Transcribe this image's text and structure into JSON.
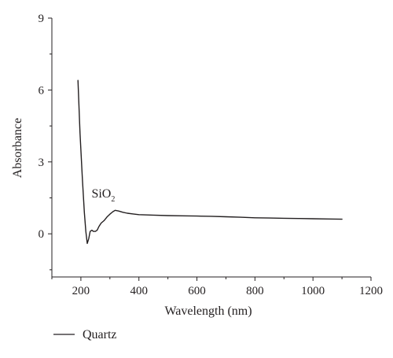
{
  "chart_data": {
    "type": "line",
    "xlabel": "Wavelength (nm)",
    "ylabel": "Absorbance",
    "xlim": [
      100,
      1200
    ],
    "ylim": [
      -1.8,
      9
    ],
    "x_ticks": [
      200,
      400,
      600,
      800,
      1000,
      1200
    ],
    "x_tick_labels": [
      "200",
      "400",
      "600",
      "800",
      "1000",
      "1200"
    ],
    "y_ticks": [
      0,
      3,
      6,
      9
    ],
    "y_tick_labels": [
      "0",
      "3",
      "6",
      "9"
    ],
    "grid": false,
    "legend_position": "bottom-left",
    "annotation": {
      "text": "SiO",
      "subscript": "2",
      "x": 318,
      "y": 1.25
    },
    "series": [
      {
        "name": "Quartz",
        "color": "#231f20",
        "x": [
          190,
          197,
          205,
          212,
          217,
          222,
          227,
          232,
          238,
          243,
          250,
          256,
          262,
          270,
          280,
          290,
          300,
          310,
          318,
          330,
          345,
          360,
          380,
          400,
          450,
          500,
          550,
          600,
          650,
          700,
          750,
          800,
          850,
          900,
          950,
          1000,
          1050,
          1100
        ],
        "y": [
          6.4,
          4.2,
          2.3,
          0.9,
          0.1,
          -0.4,
          -0.2,
          0.1,
          0.15,
          0.1,
          0.1,
          0.15,
          0.3,
          0.45,
          0.55,
          0.7,
          0.82,
          0.92,
          0.98,
          0.95,
          0.9,
          0.86,
          0.83,
          0.8,
          0.78,
          0.76,
          0.75,
          0.74,
          0.73,
          0.71,
          0.69,
          0.67,
          0.66,
          0.65,
          0.64,
          0.63,
          0.62,
          0.61
        ]
      }
    ]
  }
}
